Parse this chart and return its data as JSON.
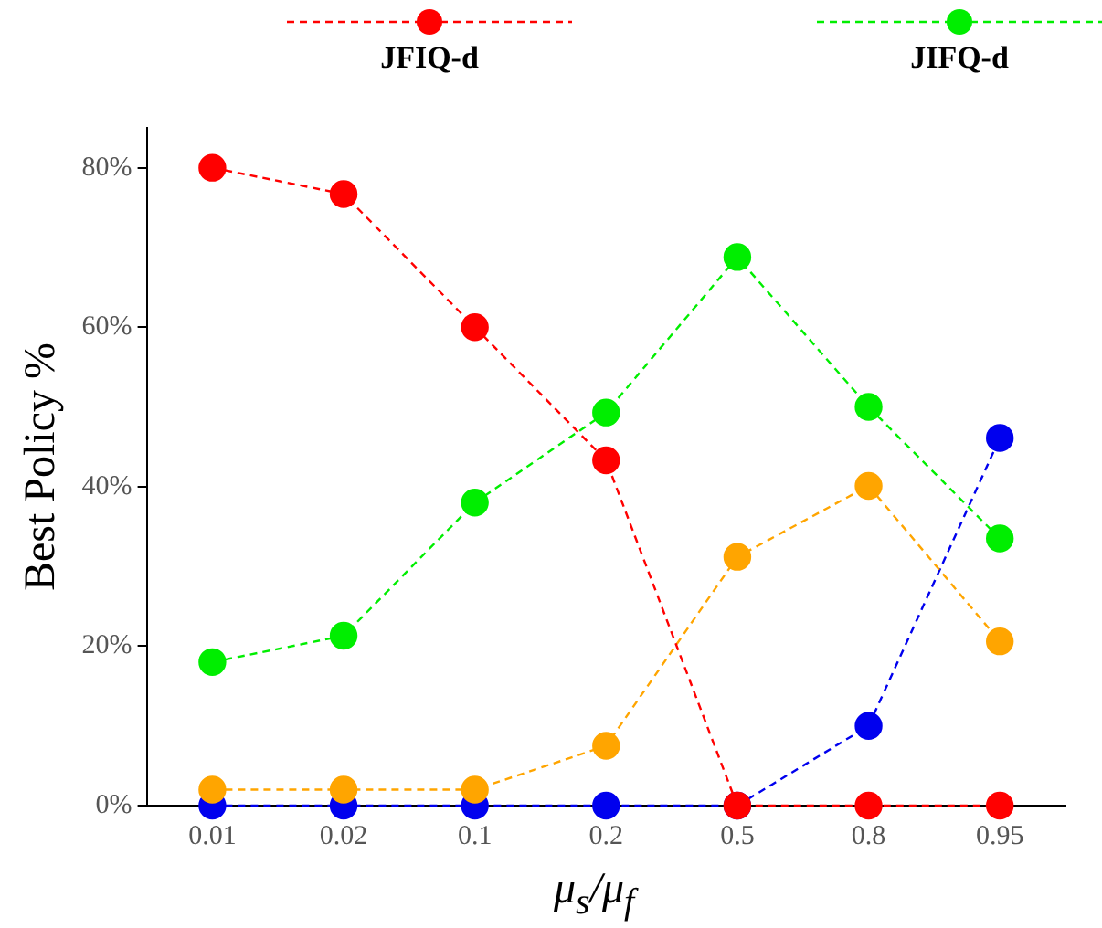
{
  "chart_data": {
    "type": "line",
    "xlabel": "μ$_{s}$/μ$_{f}$",
    "ylabel": "Best Policy %",
    "categories": [
      "0.01",
      "0.02",
      "0.1",
      "0.2",
      "0.5",
      "0.8",
      "0.95"
    ],
    "series": [
      {
        "name": "JFIQ-d",
        "color": "#ff0000",
        "values": [
          80,
          76.7,
          60,
          43.3,
          0,
          0,
          0
        ]
      },
      {
        "name": "JIFQ-d",
        "color": "#00ee00",
        "values": [
          18,
          21.3,
          38,
          49.3,
          68.8,
          50,
          33.5
        ]
      },
      {
        "color": "#ffa500",
        "values": [
          2,
          2,
          2,
          7.5,
          31.2,
          40.1,
          20.6
        ]
      },
      {
        "color": "#0000ee",
        "values": [
          0,
          0,
          0,
          0,
          0,
          10,
          46.1
        ]
      }
    ],
    "ylim": [
      0,
      85
    ],
    "yticks": [
      {
        "value": 0,
        "label": "0%"
      },
      {
        "value": 20,
        "label": "20%"
      },
      {
        "value": 40,
        "label": "40%"
      },
      {
        "value": 60,
        "label": "60%"
      },
      {
        "value": 80,
        "label": "80%"
      }
    ],
    "grid": false,
    "legend": "top",
    "marker": "circle",
    "line_style": "dashed"
  }
}
